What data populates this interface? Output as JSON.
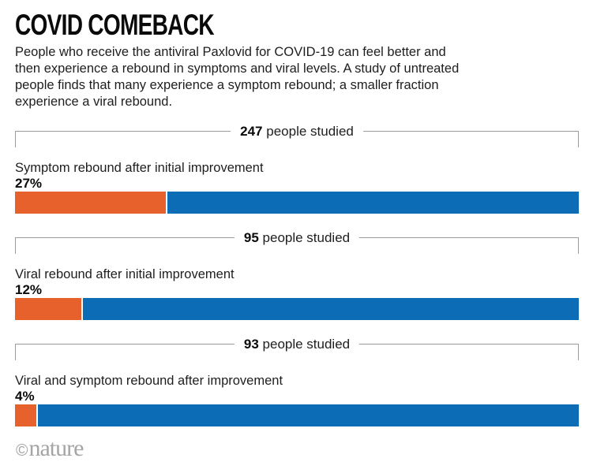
{
  "header": {
    "title": "COVID COMEBACK",
    "description_lines": [
      "People who receive the antiviral Paxlovid for COVID-19 can feel better and",
      "then experience a rebound in symptoms and viral levels. A study of untreated",
      "people finds that many experience a symptom rebound; a smaller fraction",
      "experience a viral rebound."
    ]
  },
  "chart_data": {
    "type": "bar",
    "orientation": "horizontal-stacked",
    "unit": "%",
    "xlim": [
      0,
      100
    ],
    "colors": {
      "highlight_orange": "#E6612C",
      "remainder_blue": "#0D6CB6",
      "bracket_gray": "#9b9b9b"
    },
    "groups": [
      {
        "people_count": "247",
        "people_suffix": "people studied",
        "label": "Symptom rebound after initial improvement",
        "percent": 27,
        "percent_label": "27%",
        "remainder_percent": 73
      },
      {
        "people_count": "95",
        "people_suffix": "people studied",
        "label": "Viral rebound after initial improvement",
        "percent": 12,
        "percent_label": "12%",
        "remainder_percent": 88
      },
      {
        "people_count": "93",
        "people_suffix": "people studied",
        "label": "Viral and symptom rebound after improvement",
        "percent": 4,
        "percent_label": "4%",
        "remainder_percent": 96
      }
    ]
  },
  "footer": {
    "copyright_symbol": "©",
    "brand": "nature"
  }
}
